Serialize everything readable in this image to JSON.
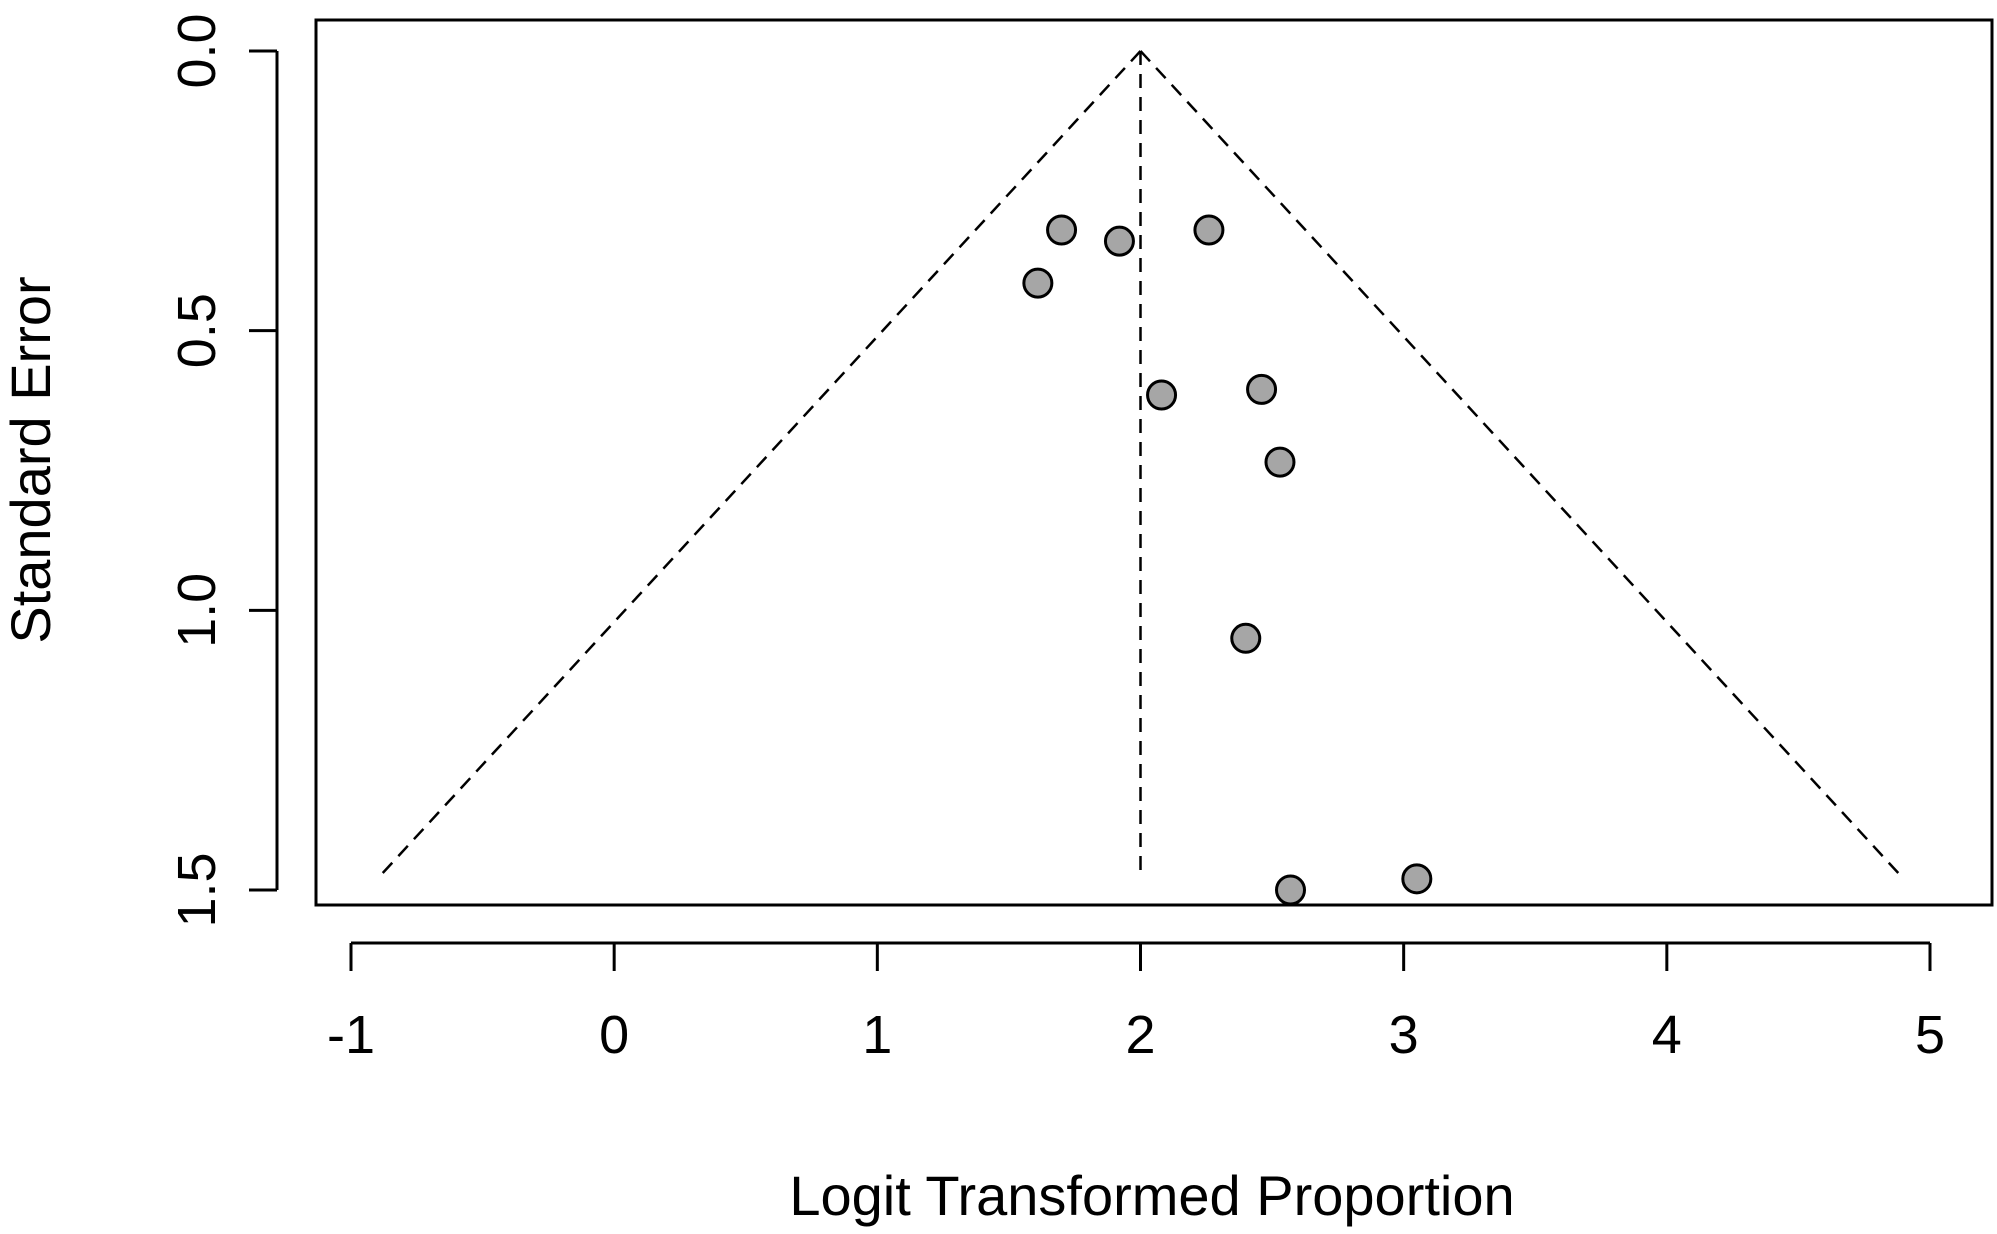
{
  "chart_data": {
    "type": "scatter",
    "subtype": "funnel-plot",
    "title": "",
    "xlabel": "Logit Transformed Proportion",
    "ylabel": "Standard Error",
    "xlim": [
      -1.15,
      5.15
    ],
    "ylim": [
      0.0,
      1.5
    ],
    "y_reversed": true,
    "xticks": [
      -1,
      0,
      1,
      2,
      3,
      4,
      5
    ],
    "xtick_labels": [
      "-1",
      "0",
      "1",
      "2",
      "3",
      "4",
      "5"
    ],
    "yticks": [
      0.0,
      0.5,
      1.0,
      1.5
    ],
    "ytick_labels": [
      "0.0",
      "0.5",
      "1.0",
      "1.5"
    ],
    "grid": false,
    "legend": "none",
    "pooled_estimate": 2.0,
    "funnel": {
      "apex": [
        2.0,
        0.0
      ],
      "left_end": [
        -0.88,
        1.47
      ],
      "right_end": [
        4.88,
        1.47
      ],
      "center_line": [
        [
          2.0,
          0.0
        ],
        [
          2.0,
          1.47
        ]
      ],
      "line_style": "dashed",
      "color": "#000000"
    },
    "points": {
      "x": [
        1.7,
        1.92,
        2.26,
        1.61,
        2.08,
        2.46,
        2.53,
        2.4,
        2.57,
        3.05
      ],
      "y": [
        0.32,
        0.34,
        0.32,
        0.415,
        0.615,
        0.605,
        0.735,
        1.05,
        1.5,
        1.48
      ],
      "fill": "#a6a6a6",
      "stroke": "#000000"
    }
  }
}
